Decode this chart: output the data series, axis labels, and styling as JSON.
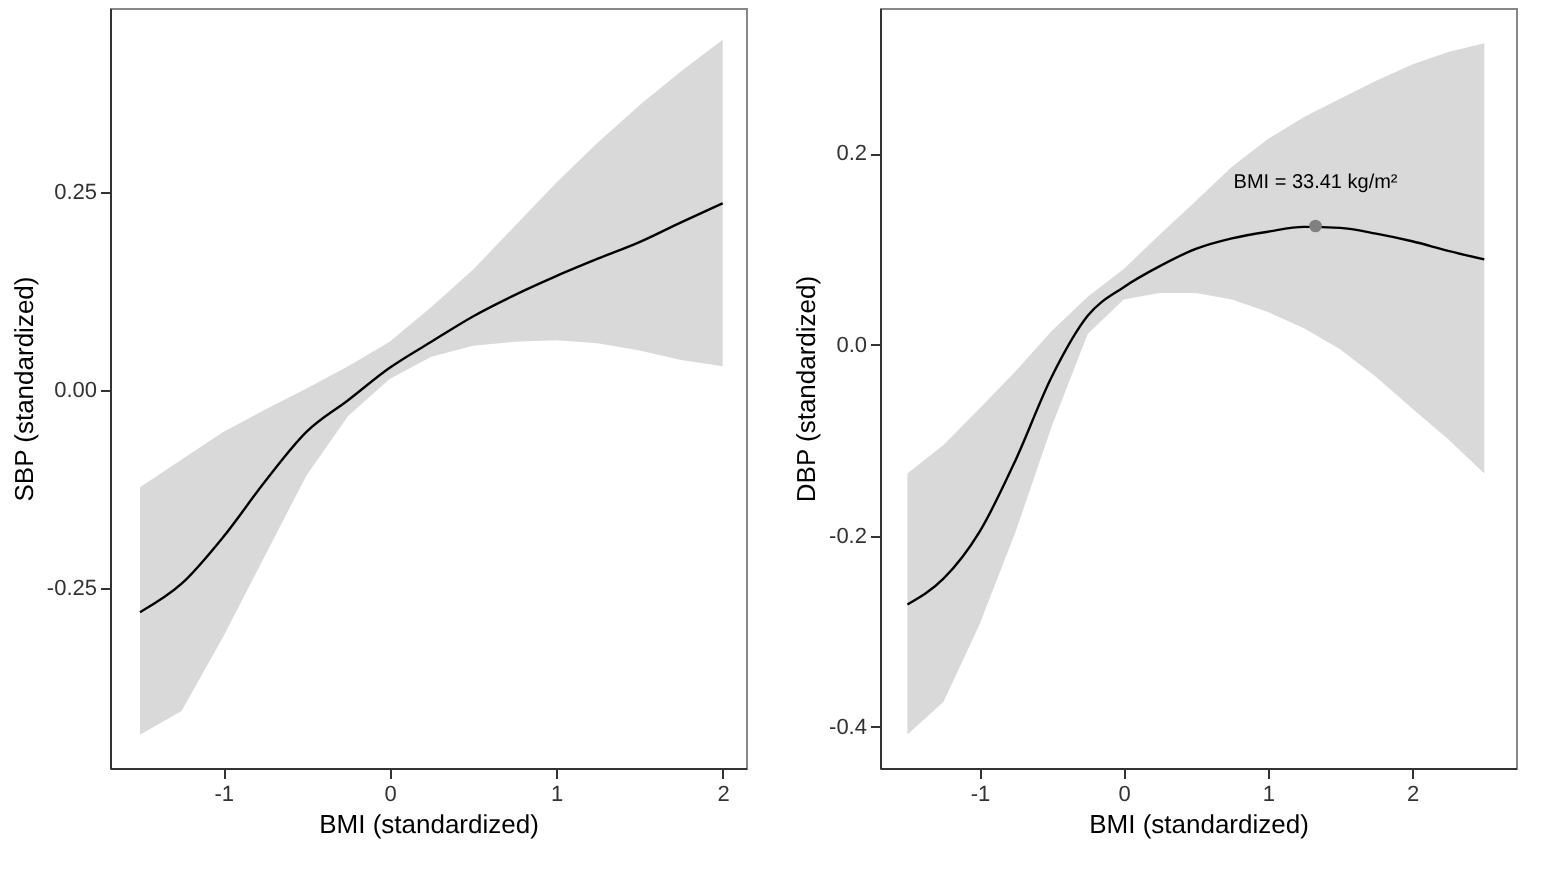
{
  "chart_data": [
    {
      "type": "line",
      "xlabel": "BMI (standardized)",
      "ylabel": "SBP (standardized)",
      "xlim": [
        -1.68,
        2.14
      ],
      "ylim": [
        -0.478,
        0.483
      ],
      "xticks": [
        -1,
        0,
        1,
        2
      ],
      "yticks": [
        {
          "value": -0.25,
          "label": "-0.25"
        },
        {
          "value": 0,
          "label": "0.00"
        },
        {
          "value": 0.25,
          "label": "0.25"
        }
      ],
      "x": [
        -1.5,
        -1.25,
        -1,
        -0.75,
        -0.5,
        -0.25,
        0,
        0.25,
        0.5,
        0.75,
        1,
        1.25,
        1.5,
        1.75,
        2
      ],
      "series": [
        {
          "color": "#000000",
          "values": [
            -0.281,
            -0.245,
            -0.186,
            -0.116,
            -0.053,
            -0.013,
            0.028,
            0.061,
            0.093,
            0.12,
            0.144,
            0.166,
            0.187,
            0.212,
            0.236
          ],
          "lower": [
            -0.436,
            -0.406,
            -0.312,
            -0.21,
            -0.108,
            -0.033,
            0.014,
            0.042,
            0.056,
            0.061,
            0.063,
            0.059,
            0.05,
            0.038,
            0.03
          ],
          "upper": [
            -0.123,
            -0.088,
            -0.053,
            -0.025,
            0.002,
            0.03,
            0.061,
            0.105,
            0.152,
            0.207,
            0.262,
            0.313,
            0.36,
            0.403,
            0.443
          ]
        }
      ]
    },
    {
      "type": "line",
      "xlabel": "BMI (standardized)",
      "ylabel": "DBP (standardized)",
      "xlim": [
        -1.69,
        2.72
      ],
      "ylim": [
        -0.443,
        0.352
      ],
      "xticks": [
        -1,
        0,
        1,
        2
      ],
      "yticks": [
        {
          "value": -0.4,
          "label": "-0.4"
        },
        {
          "value": -0.2,
          "label": "-0.2"
        },
        {
          "value": 0,
          "label": "0.0"
        },
        {
          "value": 0.2,
          "label": "0.2"
        }
      ],
      "x": [
        -1.5,
        -1.25,
        -1,
        -0.75,
        -0.5,
        -0.25,
        0,
        0.25,
        0.5,
        0.75,
        1,
        1.25,
        1.5,
        1.75,
        2,
        2.25,
        2.5
      ],
      "series": [
        {
          "color": "#000000",
          "values": [
            -0.272,
            -0.245,
            -0.196,
            -0.121,
            -0.034,
            0.03,
            0.06,
            0.082,
            0.1,
            0.111,
            0.118,
            0.123,
            0.122,
            0.116,
            0.108,
            0.098,
            0.089
          ],
          "lower": [
            -0.408,
            -0.374,
            -0.293,
            -0.196,
            -0.086,
            0.011,
            0.047,
            0.054,
            0.054,
            0.047,
            0.034,
            0.017,
            -0.005,
            -0.034,
            -0.067,
            -0.099,
            -0.135
          ],
          "upper": [
            -0.135,
            -0.105,
            -0.067,
            -0.028,
            0.014,
            0.05,
            0.079,
            0.115,
            0.15,
            0.186,
            0.215,
            0.238,
            0.257,
            0.276,
            0.293,
            0.306,
            0.315
          ]
        },
        {
          "type": "scatter",
          "color": "#808080",
          "x": [
            1.33
          ],
          "values": [
            0.124
          ]
        }
      ],
      "annotations": [
        {
          "text": "BMI = 33.41 kg/m²",
          "x": 1.33,
          "y": 0.124
        }
      ]
    }
  ]
}
